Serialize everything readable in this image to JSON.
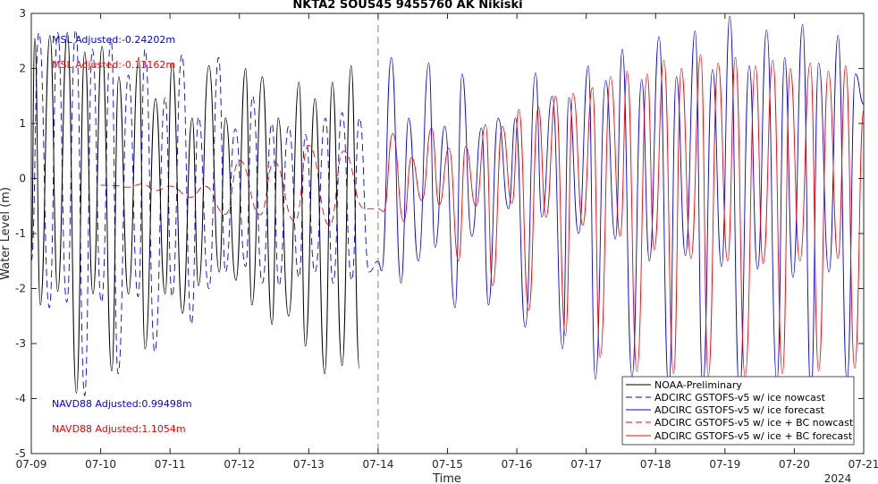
{
  "chart_data": {
    "type": "line",
    "title": "NKTA2 SOUS45 9455760 AK Nikiski",
    "xlabel": "Time",
    "ylabel": "Water Level (m)",
    "year_label": "2024",
    "ylim": [
      -5,
      3
    ],
    "yticks": [
      -5,
      -4,
      -3,
      -2,
      -1,
      0,
      1,
      2,
      3
    ],
    "xlim": [
      "07-09",
      "07-21"
    ],
    "xticks": [
      "07-09",
      "07-10",
      "07-11",
      "07-12",
      "07-13",
      "07-14",
      "07-15",
      "07-16",
      "07-17",
      "07-18",
      "07-19",
      "07-20",
      "07-21"
    ],
    "nowcast_forecast_split": "07-14",
    "grid": false,
    "legend_position": "bottom-right",
    "annotations": [
      {
        "text": "MSL Adjusted:-0.24202m",
        "color": "#0000ff",
        "position": "top-left"
      },
      {
        "text": "MSL Adjusted:-0.13162m",
        "color": "#ff0000",
        "position": "top-left"
      },
      {
        "text": "NAVD88 Adjusted:0.99498m",
        "color": "#0000ff",
        "position": "bottom-left"
      },
      {
        "text": "NAVD88 Adjusted:1.1054m",
        "color": "#ff0000",
        "position": "bottom-left"
      }
    ],
    "series": [
      {
        "name": "NOAA-Preliminary",
        "color": "#000000",
        "style": "solid",
        "x_days": [
          0.0,
          0.05,
          0.13,
          0.27,
          0.38,
          0.52,
          0.65,
          0.77,
          0.89,
          1.02,
          1.16,
          1.26,
          1.4,
          1.55,
          1.64,
          1.79,
          1.93,
          2.03,
          2.18,
          2.32,
          2.41,
          2.56,
          2.71,
          2.8,
          2.95,
          3.09,
          3.18,
          3.33,
          3.47,
          3.56,
          3.71,
          3.86,
          3.95,
          4.09,
          4.23,
          4.34,
          4.48,
          4.61,
          4.73
        ],
        "values": [
          -1.4,
          2.55,
          -2.3,
          2.6,
          -2.05,
          2.65,
          -3.9,
          2.3,
          -2.1,
          2.4,
          -3.5,
          1.85,
          -2.1,
          2.2,
          -3.1,
          1.45,
          -2.1,
          2.1,
          -2.45,
          1.1,
          -1.95,
          2.05,
          -1.7,
          1.1,
          -1.85,
          2.0,
          -2.3,
          1.85,
          -2.65,
          1.1,
          -2.5,
          1.75,
          -3.05,
          1.45,
          -3.55,
          1.75,
          -3.4,
          2.05,
          -3.45
        ]
      },
      {
        "name": "ADCIRC GSTOFS-v5 w/ ice nowcast",
        "color": "#0000ff",
        "style": "dashed",
        "x_days": [
          0.0,
          0.11,
          0.26,
          0.38,
          0.51,
          0.64,
          0.77,
          0.88,
          1.01,
          1.15,
          1.25,
          1.4,
          1.54,
          1.64,
          1.78,
          1.93,
          2.03,
          2.17,
          2.31,
          2.41,
          2.56,
          2.7,
          2.8,
          2.94,
          3.09,
          3.19,
          3.33,
          3.47,
          3.57,
          3.71,
          3.86,
          3.95,
          4.09,
          4.24,
          4.35,
          4.48,
          4.62,
          4.73,
          4.87,
          5.0
        ],
        "values": [
          -1.5,
          2.65,
          -2.35,
          2.65,
          -2.25,
          2.7,
          -3.95,
          2.35,
          -2.25,
          2.55,
          -3.55,
          1.88,
          -2.15,
          2.35,
          -3.15,
          1.47,
          -2.15,
          2.25,
          -2.65,
          1.12,
          -2.0,
          2.2,
          -1.7,
          0.9,
          -1.6,
          1.5,
          -1.9,
          1.0,
          -1.95,
          0.95,
          -1.8,
          0.8,
          -1.7,
          1.1,
          -1.9,
          1.2,
          -1.85,
          1.1,
          -1.7,
          -1.5
        ]
      },
      {
        "name": "ADCIRC GSTOFS-v5 w/ ice forecast",
        "color": "#0000ff",
        "style": "solid",
        "x_days": [
          5.0,
          5.05,
          5.19,
          5.33,
          5.44,
          5.58,
          5.73,
          5.82,
          5.96,
          6.11,
          6.21,
          6.35,
          6.49,
          6.59,
          6.73,
          6.88,
          6.98,
          7.12,
          7.27,
          7.36,
          7.51,
          7.66,
          7.75,
          7.89,
          8.03,
          8.13,
          8.28,
          8.42,
          8.52,
          8.66,
          8.8,
          8.91,
          9.05,
          9.19,
          9.3,
          9.43,
          9.57,
          9.68,
          9.82,
          9.95,
          10.07,
          10.21,
          10.35,
          10.47,
          10.6,
          10.75,
          10.86,
          10.98,
          11.12,
          11.24,
          11.35,
          11.5,
          11.63,
          11.76,
          11.88,
          12.0
        ],
        "values": [
          -1.5,
          -1.68,
          2.2,
          -1.9,
          1.1,
          -1.5,
          2.1,
          -1.25,
          0.95,
          -2.35,
          1.9,
          -1.05,
          0.92,
          -2.3,
          1.1,
          -0.55,
          1.1,
          -2.7,
          1.92,
          -0.7,
          1.5,
          -3.1,
          1.47,
          -1.0,
          2.05,
          -3.65,
          1.78,
          -1.1,
          2.35,
          -3.6,
          1.8,
          -1.5,
          2.58,
          -3.85,
          1.85,
          -1.4,
          2.68,
          -3.8,
          1.98,
          -1.6,
          2.95,
          -3.9,
          2.05,
          -1.65,
          2.7,
          -3.7,
          2.2,
          -1.8,
          2.8,
          -3.95,
          2.1,
          -1.7,
          2.6,
          -3.7,
          1.9,
          1.35
        ]
      },
      {
        "name": "ADCIRC GSTOFS-v5 w/ ice + BC nowcast",
        "color": "#ff0000",
        "style": "dashed",
        "x_days": [
          1.0,
          1.2,
          1.4,
          1.6,
          1.8,
          2.0,
          2.3,
          2.5,
          2.8,
          3.0,
          3.3,
          3.5,
          3.8,
          4.0,
          4.3,
          4.5,
          4.8,
          5.0
        ],
        "values": [
          -0.12,
          -0.13,
          -0.16,
          -0.1,
          -0.22,
          -0.14,
          -0.34,
          -0.14,
          -0.65,
          0.33,
          -0.66,
          0.3,
          -0.78,
          0.6,
          -0.85,
          0.5,
          -0.55,
          -0.55
        ]
      },
      {
        "name": "ADCIRC GSTOFS-v5 w/ ice + BC forecast",
        "color": "#ff0000",
        "style": "solid",
        "x_days": [
          5.0,
          5.08,
          5.21,
          5.37,
          5.48,
          5.63,
          5.77,
          5.88,
          6.02,
          6.16,
          6.26,
          6.41,
          6.55,
          6.65,
          6.79,
          6.93,
          7.03,
          7.17,
          7.31,
          7.42,
          7.56,
          7.7,
          7.81,
          7.95,
          8.09,
          8.2,
          8.35,
          8.49,
          8.59,
          8.73,
          8.88,
          8.98,
          9.12,
          9.26,
          9.37,
          9.51,
          9.65,
          9.76,
          9.9,
          10.04,
          10.15,
          10.29,
          10.44,
          10.55,
          10.69,
          10.83,
          10.94,
          11.08,
          11.23,
          11.35,
          11.49,
          11.63,
          11.74,
          11.87,
          12.0
        ],
        "values": [
          -0.55,
          -0.6,
          0.82,
          -0.78,
          0.38,
          -0.4,
          0.92,
          -0.48,
          0.55,
          -1.5,
          0.58,
          -0.5,
          0.98,
          -1.95,
          0.95,
          -0.45,
          1.25,
          -2.4,
          1.3,
          -0.7,
          1.5,
          -2.85,
          1.55,
          -0.85,
          1.65,
          -3.25,
          1.85,
          -1.05,
          1.95,
          -3.5,
          1.9,
          -1.3,
          2.15,
          -3.55,
          2.0,
          -1.45,
          2.25,
          -3.6,
          2.1,
          -1.5,
          2.2,
          -3.6,
          2.05,
          -1.55,
          2.15,
          -3.55,
          2.0,
          -1.5,
          2.1,
          -3.5,
          1.95,
          -1.45,
          2.05,
          -3.45,
          1.25
        ]
      }
    ]
  }
}
